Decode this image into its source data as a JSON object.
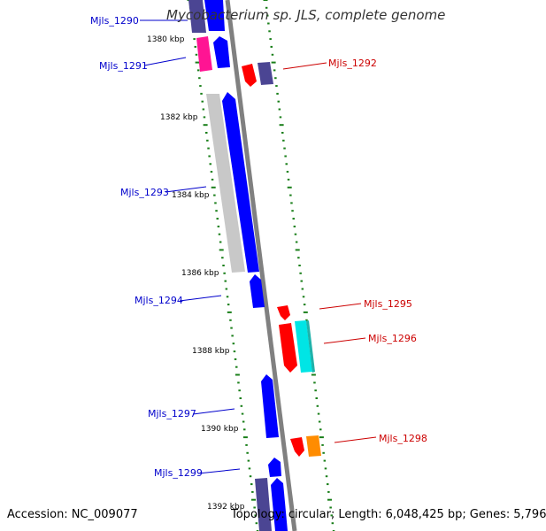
{
  "title": "Mycobacterium sp. JLS, complete genome",
  "footer": {
    "accession_label": "Accession:",
    "accession": "NC_009077",
    "topology_label": "Topology:",
    "topology": "circular;",
    "length_label": "Length:",
    "length": "6,048,425 bp;",
    "genes_label": "Genes:",
    "genes": "5,796"
  },
  "colors": {
    "backbone": "#808080",
    "scale_ticks": "#1a7f1a",
    "forward_label": "#0000cc",
    "reverse_label": "#cc0000",
    "gene_blue": "#0000ff",
    "gene_navy": "#4b4593",
    "gene_magenta": "#ff1493",
    "gene_grey": "#c8c8c8",
    "gene_red": "#ff0000",
    "gene_cyan": "#00e5e5",
    "gene_orange": "#ff8c00"
  },
  "scale_labels": [
    "1380 kbp",
    "1382 kbp",
    "1384 kbp",
    "1386 kbp",
    "1388 kbp",
    "1390 kbp",
    "1392 kbp"
  ],
  "gene_labels": [
    {
      "text": "Mjls_1290",
      "strand": "forward"
    },
    {
      "text": "Mjls_1291",
      "strand": "forward"
    },
    {
      "text": "Mjls_1292",
      "strand": "reverse"
    },
    {
      "text": "Mjls_1293",
      "strand": "forward"
    },
    {
      "text": "Mjls_1294",
      "strand": "forward"
    },
    {
      "text": "Mjls_1295",
      "strand": "reverse"
    },
    {
      "text": "Mjls_1296",
      "strand": "reverse"
    },
    {
      "text": "Mjls_1297",
      "strand": "forward"
    },
    {
      "text": "Mjls_1298",
      "strand": "reverse"
    },
    {
      "text": "Mjls_1299",
      "strand": "forward"
    }
  ]
}
